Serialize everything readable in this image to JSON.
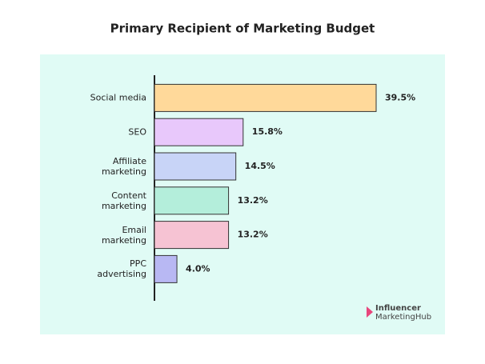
{
  "chart_data": {
    "type": "bar",
    "orientation": "horizontal",
    "title": "Primary Recipient of Marketing Budget",
    "categories": [
      "Social media",
      "SEO",
      "Affiliate marketing",
      "Content marketing",
      "Email marketing",
      "PPC advertising"
    ],
    "values": [
      39.5,
      15.8,
      14.5,
      13.2,
      13.2,
      4.0
    ],
    "value_labels": [
      "39.5%",
      "15.8%",
      "14.5%",
      "13.2%",
      "13.2%",
      "4.0%"
    ],
    "colors": [
      "#ffd99a",
      "#e8c8fb",
      "#c8d4f7",
      "#b4eedb",
      "#f6c3d3",
      "#b8b8f3"
    ],
    "logo": [
      "Influencer",
      "MarketingHub"
    ]
  }
}
